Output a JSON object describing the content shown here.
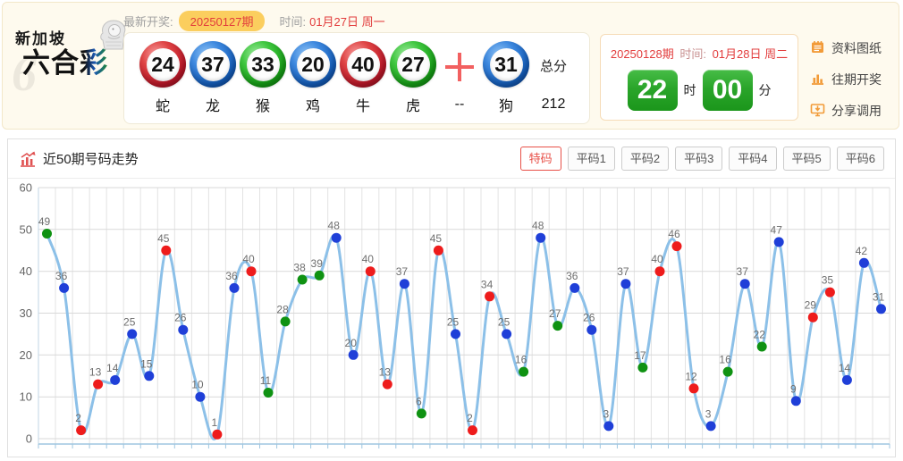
{
  "header": {
    "logo": {
      "ghost": "6",
      "region": "新加坡",
      "brand": "六合彩"
    },
    "latest_label": "最新开奖:",
    "latest_issue": "20250127期",
    "time_label": "时间:",
    "time_value": "01月27日 周一",
    "balls": [
      {
        "num": "24",
        "color": "red",
        "zodiac": "蛇"
      },
      {
        "num": "37",
        "color": "blue",
        "zodiac": "龙"
      },
      {
        "num": "33",
        "color": "green",
        "zodiac": "猴"
      },
      {
        "num": "20",
        "color": "blue",
        "zodiac": "鸡"
      },
      {
        "num": "40",
        "color": "red",
        "zodiac": "牛"
      },
      {
        "num": "27",
        "color": "green",
        "zodiac": "虎"
      }
    ],
    "plus_sign": "+",
    "plus_label": "--",
    "special_ball": {
      "num": "31",
      "color": "blue",
      "zodiac": "狗"
    },
    "total_label": "总分",
    "total_value": "212"
  },
  "countdown": {
    "issue": "20250128期",
    "time_label": "时间:",
    "time_value": "01月28日 周二",
    "hour": "22",
    "hour_unit": "时",
    "minute": "00",
    "minute_unit": "分"
  },
  "side_links": [
    {
      "icon": "document-icon",
      "label": "资料图纸"
    },
    {
      "icon": "bar-chart-icon",
      "label": "往期开奖"
    },
    {
      "icon": "share-icon",
      "label": "分享调用"
    }
  ],
  "trend_panel": {
    "title": "近50期号码走势",
    "tabs": [
      {
        "label": "特码",
        "active": true
      },
      {
        "label": "平码1",
        "active": false
      },
      {
        "label": "平码2",
        "active": false
      },
      {
        "label": "平码3",
        "active": false
      },
      {
        "label": "平码4",
        "active": false
      },
      {
        "label": "平码5",
        "active": false
      },
      {
        "label": "平码6",
        "active": false
      }
    ]
  },
  "chart_data": {
    "type": "line",
    "title": "近50期号码走势",
    "ylim": [
      0,
      60
    ],
    "yticks": [
      0,
      10,
      20,
      30,
      40,
      50,
      60
    ],
    "grid": true,
    "legend_position": "none",
    "line_color": "#8cc0e8",
    "label_color": "#6e6e6e",
    "point_color_map": {
      "red": "#ee1c1c",
      "blue": "#1f3fd8",
      "green": "#0f9212"
    },
    "points": [
      {
        "value": 49,
        "color": "green"
      },
      {
        "value": 36,
        "color": "blue"
      },
      {
        "value": 2,
        "color": "red"
      },
      {
        "value": 13,
        "color": "red"
      },
      {
        "value": 14,
        "color": "blue"
      },
      {
        "value": 25,
        "color": "blue"
      },
      {
        "value": 15,
        "color": "blue"
      },
      {
        "value": 45,
        "color": "red"
      },
      {
        "value": 26,
        "color": "blue"
      },
      {
        "value": 10,
        "color": "blue"
      },
      {
        "value": 1,
        "color": "red"
      },
      {
        "value": 36,
        "color": "blue"
      },
      {
        "value": 40,
        "color": "red"
      },
      {
        "value": 11,
        "color": "green"
      },
      {
        "value": 28,
        "color": "green"
      },
      {
        "value": 38,
        "color": "green"
      },
      {
        "value": 39,
        "color": "green"
      },
      {
        "value": 48,
        "color": "blue"
      },
      {
        "value": 20,
        "color": "blue"
      },
      {
        "value": 40,
        "color": "red"
      },
      {
        "value": 13,
        "color": "red"
      },
      {
        "value": 37,
        "color": "blue"
      },
      {
        "value": 6,
        "color": "green"
      },
      {
        "value": 45,
        "color": "red"
      },
      {
        "value": 25,
        "color": "blue"
      },
      {
        "value": 2,
        "color": "red"
      },
      {
        "value": 34,
        "color": "red"
      },
      {
        "value": 25,
        "color": "blue"
      },
      {
        "value": 16,
        "color": "green"
      },
      {
        "value": 48,
        "color": "blue"
      },
      {
        "value": 27,
        "color": "green"
      },
      {
        "value": 36,
        "color": "blue"
      },
      {
        "value": 26,
        "color": "blue"
      },
      {
        "value": 3,
        "color": "blue"
      },
      {
        "value": 37,
        "color": "blue"
      },
      {
        "value": 17,
        "color": "green"
      },
      {
        "value": 40,
        "color": "red"
      },
      {
        "value": 46,
        "color": "red"
      },
      {
        "value": 12,
        "color": "red"
      },
      {
        "value": 3,
        "color": "blue"
      },
      {
        "value": 16,
        "color": "green"
      },
      {
        "value": 37,
        "color": "blue"
      },
      {
        "value": 22,
        "color": "green"
      },
      {
        "value": 47,
        "color": "blue"
      },
      {
        "value": 9,
        "color": "blue"
      },
      {
        "value": 29,
        "color": "red"
      },
      {
        "value": 35,
        "color": "red"
      },
      {
        "value": 14,
        "color": "blue"
      },
      {
        "value": 42,
        "color": "blue"
      },
      {
        "value": 31,
        "color": "blue"
      }
    ]
  },
  "colors": {
    "accent_red": "#e23c3c",
    "badge_gold": "#fbce5e",
    "countdown_green": "#2aa52a",
    "link_orange": "#f29b38",
    "header_bg": "#fefaee"
  }
}
